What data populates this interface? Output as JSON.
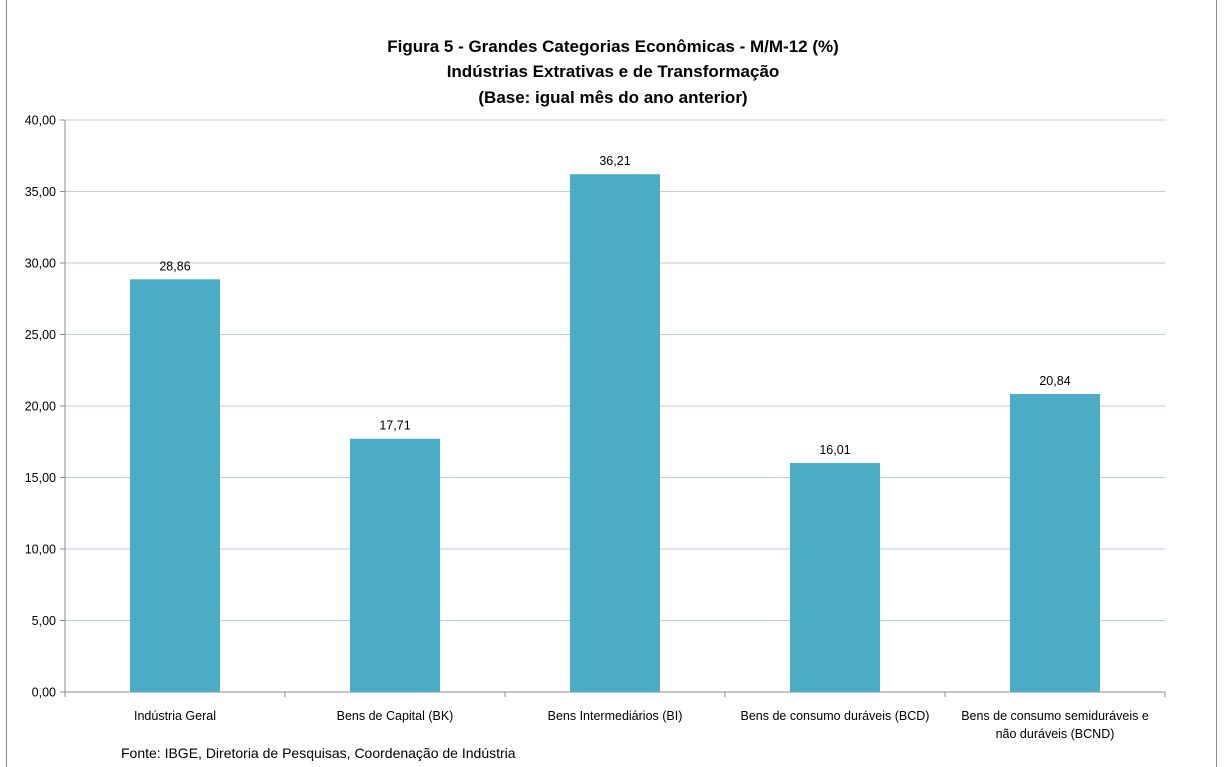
{
  "chart_data": {
    "type": "bar",
    "title_lines": [
      "Figura 5 - Grandes Categorias Econômicas - M/M-12 (%)",
      "Indústrias Extrativas e de Transformação",
      "(Base: igual mês do ano anterior)"
    ],
    "categories": [
      [
        "Indústria Geral"
      ],
      [
        "Bens de Capital (BK)"
      ],
      [
        "Bens Intermediários (BI)"
      ],
      [
        "Bens de consumo duráveis (BCD)"
      ],
      [
        "Bens de consumo semiduráveis e",
        "não duráveis (BCND)"
      ]
    ],
    "values": [
      28.86,
      17.71,
      36.21,
      16.01,
      20.84
    ],
    "value_labels": [
      "28,86",
      "17,71",
      "36,21",
      "16,01",
      "20,84"
    ],
    "ylim": [
      0,
      40
    ],
    "y_ticks": [
      "0,00",
      "5,00",
      "10,00",
      "15,00",
      "20,00",
      "25,00",
      "30,00",
      "35,00",
      "40,00"
    ],
    "grid": true,
    "bar_color": "#4bacc6",
    "grid_color": "#b9cde5",
    "xlabel": "",
    "ylabel": ""
  },
  "source_note": "Fonte: IBGE, Diretoria de Pesquisas, Coordenação de Indústria"
}
